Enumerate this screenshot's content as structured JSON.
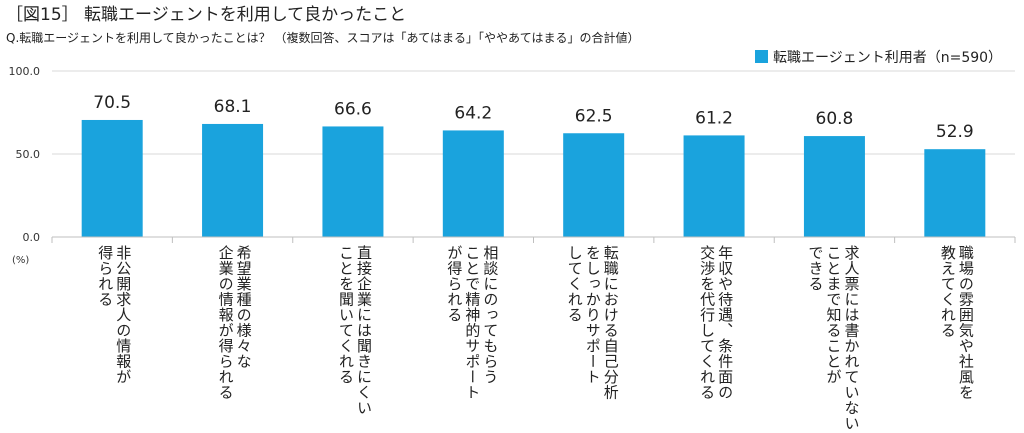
{
  "header": {
    "title": "［図15］ 転職エージェントを利用して良かったこと",
    "subtitle": "Q.転職エージェントを利用して良かったことは？ （複数回答、スコアは「あてはまる」「ややあてはまる」の合計値）"
  },
  "chart_data": {
    "type": "bar",
    "categories": [
      [
        "非公開求人の情報が",
        "得られる"
      ],
      [
        "希望業種の様々な",
        "企業の情報が得られる"
      ],
      [
        "直接企業には聞きにくい",
        "ことを聞いてくれる"
      ],
      [
        "相談にのってもらう",
        "ことで精神的サポート",
        "が得られる"
      ],
      [
        "転職における自己分析",
        "をしっかりサポート",
        "してくれる"
      ],
      [
        "年収や待遇、条件面の",
        "交渉を代行してくれる"
      ],
      [
        "求人票には書かれていない",
        "ことまで知ることが",
        "できる"
      ],
      [
        "職場の雰囲気や社風を",
        "教えてくれる"
      ]
    ],
    "series": [
      {
        "name": "転職エージェント利用者（n=590）",
        "values": [
          70.5,
          68.1,
          66.6,
          64.2,
          62.5,
          61.2,
          60.8,
          52.9
        ]
      }
    ],
    "value_labels": [
      "70.5",
      "68.1",
      "66.6",
      "64.2",
      "62.5",
      "61.2",
      "60.8",
      "52.9"
    ],
    "yticks": [
      "100.0",
      "50.0",
      "0.0"
    ],
    "ylim": [
      0,
      100
    ],
    "yunit": "(%)",
    "legend": "top-right",
    "grid": true,
    "color": "#1aa3dd"
  }
}
